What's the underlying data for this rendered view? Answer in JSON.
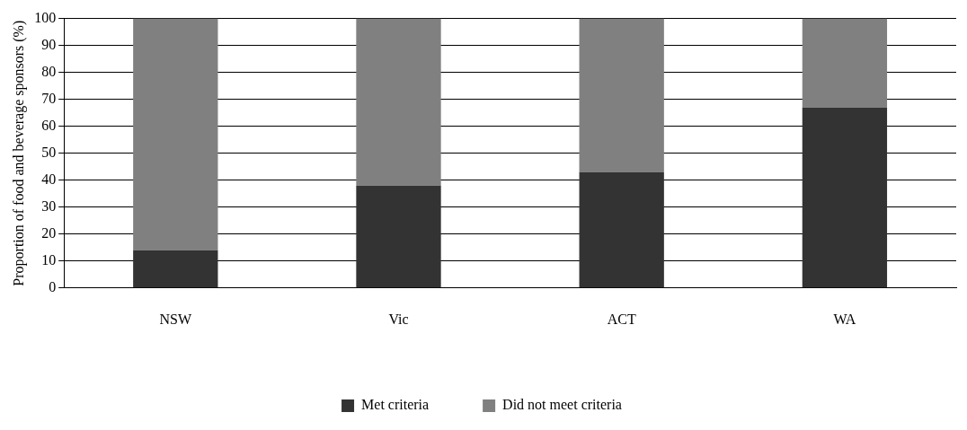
{
  "chart_data": {
    "type": "bar",
    "ylabel": "Proportion of food and beverage sponsors (%)",
    "categories": [
      "NSW",
      "Vic",
      "ACT",
      "WA"
    ],
    "stacked": true,
    "series": [
      {
        "name": "Met criteria",
        "color": "#333333",
        "values": [
          14,
          38,
          43,
          67
        ]
      },
      {
        "name": "Did not meet criteria",
        "color": "#808080",
        "values": [
          86,
          62,
          57,
          33
        ]
      }
    ],
    "ylim": [
      0,
      100
    ],
    "yticks": [
      0,
      10,
      20,
      30,
      40,
      50,
      60,
      70,
      80,
      90,
      100
    ],
    "grid": "y",
    "legend": "bottom"
  }
}
